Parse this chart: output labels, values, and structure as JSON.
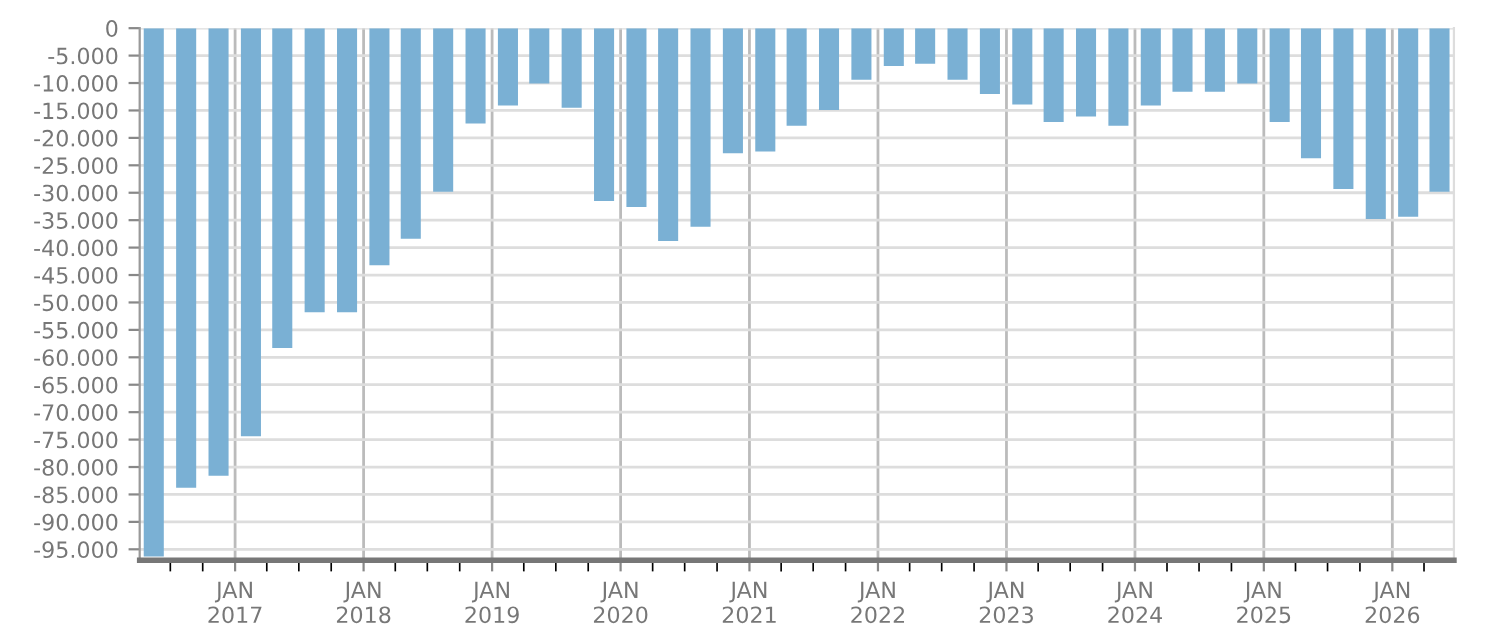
{
  "chart_data": {
    "type": "bar",
    "color": "#7ab0d4",
    "x": [
      "2016-05",
      "2016-08",
      "2016-11",
      "2017-02",
      "2017-05",
      "2017-08",
      "2017-11",
      "2018-02",
      "2018-05",
      "2018-08",
      "2018-11",
      "2019-02",
      "2019-05",
      "2019-08",
      "2019-11",
      "2020-02",
      "2020-05",
      "2020-08",
      "2020-11",
      "2021-02",
      "2021-05",
      "2021-08",
      "2021-11",
      "2022-02",
      "2022-05",
      "2022-08",
      "2022-11",
      "2023-02",
      "2023-05",
      "2023-08",
      "2023-11",
      "2024-02",
      "2024-05",
      "2024-08",
      "2024-11",
      "2025-02",
      "2025-05",
      "2025-08",
      "2025-11",
      "2026-02",
      "2026-05"
    ],
    "values": [
      -96300,
      -83800,
      -81600,
      -74400,
      -58300,
      -51800,
      -51800,
      -43200,
      -38400,
      -29800,
      -17400,
      -14100,
      -10100,
      -14500,
      -31500,
      -32600,
      -38800,
      -36200,
      -22800,
      -22500,
      -17800,
      -14900,
      -9400,
      -6900,
      -6500,
      -9400,
      -12000,
      -13900,
      -17100,
      -16100,
      -17800,
      -14100,
      -11600,
      -11600,
      -10100,
      -17100,
      -23700,
      -29300,
      -34800,
      -34400,
      -29800
    ],
    "ylim": [
      -97000,
      0
    ],
    "yticks": [
      {
        "value": -95000,
        "label": "-95.000"
      },
      {
        "value": -90000,
        "label": "-90.000"
      },
      {
        "value": -85000,
        "label": "-85.000"
      },
      {
        "value": -80000,
        "label": "-80.000"
      },
      {
        "value": -75000,
        "label": "-75.000"
      },
      {
        "value": -70000,
        "label": "-70.000"
      },
      {
        "value": -65000,
        "label": "-65.000"
      },
      {
        "value": -60000,
        "label": "-60.000"
      },
      {
        "value": -55000,
        "label": "-55.000"
      },
      {
        "value": -50000,
        "label": "-50.000"
      },
      {
        "value": -45000,
        "label": "-45.000"
      },
      {
        "value": -40000,
        "label": "-40.000"
      },
      {
        "value": -35000,
        "label": "-35.000"
      },
      {
        "value": -30000,
        "label": "-30.000"
      },
      {
        "value": -25000,
        "label": "-25.000"
      },
      {
        "value": -20000,
        "label": "-20.000"
      },
      {
        "value": -15000,
        "label": "-15.000"
      },
      {
        "value": -10000,
        "label": "-10.000"
      },
      {
        "value": -5000,
        "label": "-5.000"
      },
      {
        "value": 0,
        "label": "0"
      }
    ],
    "xlim": [
      "2016-04-05",
      "2026-06-25"
    ],
    "xticks": [
      {
        "value": "2016-07-01",
        "label": null
      },
      {
        "value": "2016-10-01",
        "label": null
      },
      {
        "value": "2017-01-01",
        "label": "JAN\n2017"
      },
      {
        "value": "2017-04-01",
        "label": null
      },
      {
        "value": "2017-07-01",
        "label": null
      },
      {
        "value": "2017-10-01",
        "label": null
      },
      {
        "value": "2018-01-01",
        "label": "JAN\n2018"
      },
      {
        "value": "2018-04-01",
        "label": null
      },
      {
        "value": "2018-07-01",
        "label": null
      },
      {
        "value": "2018-10-01",
        "label": null
      },
      {
        "value": "2019-01-01",
        "label": "JAN\n2019"
      },
      {
        "value": "2019-04-01",
        "label": null
      },
      {
        "value": "2019-07-01",
        "label": null
      },
      {
        "value": "2019-10-01",
        "label": null
      },
      {
        "value": "2020-01-01",
        "label": "JAN\n2020"
      },
      {
        "value": "2020-04-01",
        "label": null
      },
      {
        "value": "2020-07-01",
        "label": null
      },
      {
        "value": "2020-10-01",
        "label": null
      },
      {
        "value": "2021-01-01",
        "label": "JAN\n2021"
      },
      {
        "value": "2021-04-01",
        "label": null
      },
      {
        "value": "2021-07-01",
        "label": null
      },
      {
        "value": "2021-10-01",
        "label": null
      },
      {
        "value": "2022-01-01",
        "label": "JAN\n2022"
      },
      {
        "value": "2022-04-01",
        "label": null
      },
      {
        "value": "2022-07-01",
        "label": null
      },
      {
        "value": "2022-10-01",
        "label": null
      },
      {
        "value": "2023-01-01",
        "label": "JAN\n2023"
      },
      {
        "value": "2023-04-01",
        "label": null
      },
      {
        "value": "2023-07-01",
        "label": null
      },
      {
        "value": "2023-10-01",
        "label": null
      },
      {
        "value": "2024-01-01",
        "label": "JAN\n2024"
      },
      {
        "value": "2024-04-01",
        "label": null
      },
      {
        "value": "2024-07-01",
        "label": null
      },
      {
        "value": "2024-10-01",
        "label": null
      },
      {
        "value": "2025-01-01",
        "label": "JAN\n2025"
      },
      {
        "value": "2025-04-01",
        "label": null
      },
      {
        "value": "2025-07-01",
        "label": null
      },
      {
        "value": "2025-10-01",
        "label": null
      },
      {
        "value": "2026-01-01",
        "label": "JAN\n2026"
      },
      {
        "value": "2026-04-01",
        "label": null
      }
    ],
    "grid": true
  }
}
